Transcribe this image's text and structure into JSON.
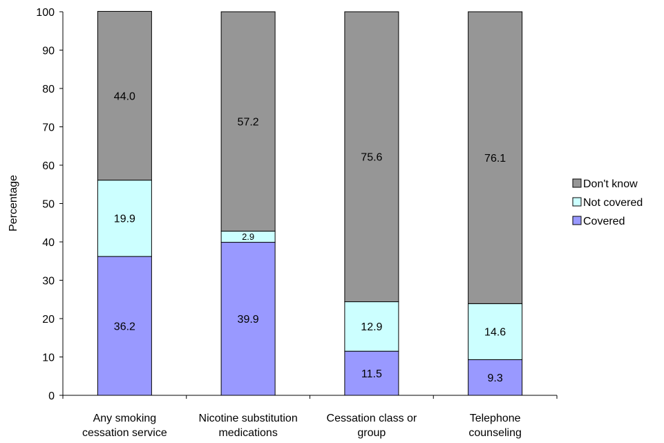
{
  "chart_data": {
    "type": "bar",
    "stacked": true,
    "xlabel": "",
    "ylabel": "Percentage",
    "ylim": [
      0,
      100
    ],
    "yticks": [
      0,
      10,
      20,
      30,
      40,
      50,
      60,
      70,
      80,
      90,
      100
    ],
    "grid": false,
    "legend_position": "right",
    "categories": [
      [
        "Any smoking",
        "cessation service"
      ],
      [
        "Nicotine substitution",
        "medications"
      ],
      [
        "Cessation class or",
        "group"
      ],
      [
        "Telephone",
        "counseling"
      ]
    ],
    "series": [
      {
        "name": "Covered",
        "color": "#9999ff",
        "values": [
          36.2,
          39.9,
          11.5,
          9.3
        ],
        "labels": [
          "36.2",
          "39.9",
          "11.5",
          "9.3"
        ]
      },
      {
        "name": "Not covered",
        "color": "#ccffff",
        "values": [
          19.9,
          2.9,
          12.9,
          14.6
        ],
        "labels": [
          "19.9",
          "2.9",
          "12.9",
          "14.6"
        ]
      },
      {
        "name": "Don't know",
        "color": "#969696",
        "values": [
          44.0,
          57.2,
          75.6,
          76.1
        ],
        "labels": [
          "44.0",
          "57.2",
          "75.6",
          "76.1"
        ]
      }
    ],
    "legend_order": [
      "Don't know",
      "Not covered",
      "Covered"
    ]
  }
}
